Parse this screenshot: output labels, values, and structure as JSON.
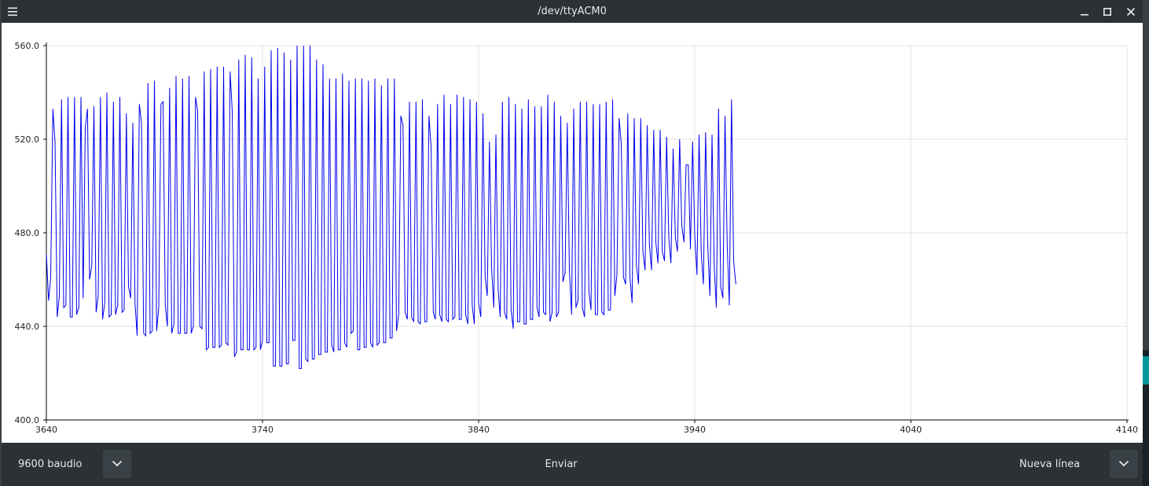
{
  "window": {
    "title": "/dev/ttyACM0"
  },
  "titlebar_icons": {
    "menu": "hamburger-menu-icon",
    "minimize": "minimize-icon",
    "maximize": "maximize-icon",
    "close": "close-icon"
  },
  "bottom": {
    "baud_label": "9600 baudio",
    "send_label": "Enviar",
    "line_ending_label": "Nueva línea"
  },
  "colors": {
    "series": "#0000ee",
    "bar_background": "#2b3135",
    "grid": "#e3e3e3"
  },
  "chart_data": {
    "type": "line",
    "xlim": [
      3640,
      4140
    ],
    "ylim": [
      400,
      560
    ],
    "x_ticks": [
      "3640",
      "3740",
      "3840",
      "3940",
      "4040",
      "4140"
    ],
    "y_ticks": [
      "400.0",
      "440.0",
      "480.0",
      "520.0",
      "560.0"
    ],
    "grid": true,
    "x_start": 3640,
    "x_step": 1,
    "series": [
      {
        "values": [
          471,
          451,
          461,
          533,
          519,
          444,
          453,
          537,
          448,
          449,
          538,
          444,
          444,
          538,
          445,
          448,
          538,
          452,
          525,
          533,
          460,
          466,
          534,
          446,
          453,
          538,
          443,
          450,
          540,
          444,
          445,
          536,
          445,
          449,
          538,
          446,
          447,
          531,
          457,
          452,
          527,
          450,
          436,
          535,
          527,
          437,
          436,
          544,
          437,
          438,
          545,
          438,
          448,
          535,
          536,
          449,
          440,
          542,
          437,
          441,
          547,
          437,
          437,
          546,
          437,
          437,
          547,
          437,
          440,
          538,
          532,
          440,
          439,
          549,
          430,
          431,
          550,
          431,
          431,
          551,
          431,
          432,
          551,
          433,
          432,
          549,
          532,
          427,
          429,
          554,
          430,
          430,
          556,
          430,
          430,
          555,
          430,
          431,
          546,
          430,
          434,
          551,
          433,
          433,
          558,
          423,
          423,
          559,
          423,
          423,
          557,
          424,
          424,
          554,
          434,
          434,
          560,
          422,
          422,
          560,
          426,
          425,
          560,
          426,
          426,
          554,
          428,
          428,
          552,
          429,
          429,
          546,
          432,
          429,
          546,
          430,
          430,
          548,
          433,
          431,
          545,
          437,
          438,
          546,
          430,
          430,
          546,
          431,
          431,
          545,
          433,
          431,
          546,
          432,
          433,
          543,
          433,
          433,
          546,
          435,
          435,
          546,
          438,
          445,
          530,
          526,
          446,
          443,
          536,
          444,
          442,
          536,
          442,
          441,
          537,
          442,
          442,
          530,
          517,
          446,
          443,
          535,
          445,
          442,
          539,
          443,
          442,
          535,
          443,
          444,
          539,
          443,
          443,
          538,
          445,
          441,
          537,
          449,
          441,
          536,
          450,
          444,
          531,
          461,
          453,
          519,
          465,
          448,
          522,
          456,
          444,
          536,
          446,
          443,
          538,
          447,
          439,
          535,
          442,
          442,
          533,
          441,
          441,
          537,
          443,
          443,
          534,
          448,
          444,
          534,
          446,
          445,
          539,
          442,
          446,
          536,
          444,
          446,
          530,
          459,
          463,
          527,
          464,
          445,
          533,
          448,
          451,
          536,
          448,
          444,
          536,
          455,
          447,
          535,
          445,
          445,
          535,
          446,
          445,
          536,
          447,
          447,
          537,
          453,
          462,
          529,
          518,
          461,
          458,
          531,
          461,
          450,
          529,
          466,
          458,
          529,
          472,
          464,
          526,
          475,
          464,
          524,
          476,
          467,
          524,
          472,
          468,
          521,
          478,
          467,
          516,
          478,
          472,
          520,
          483,
          476,
          509,
          509,
          473,
          519,
          479,
          462,
          522,
          471,
          458,
          523,
          475,
          453,
          522,
          465,
          448,
          533,
          457,
          452,
          530,
          475,
          449,
          537,
          468,
          458
        ],
        "note_unused": ""
      }
    ]
  }
}
